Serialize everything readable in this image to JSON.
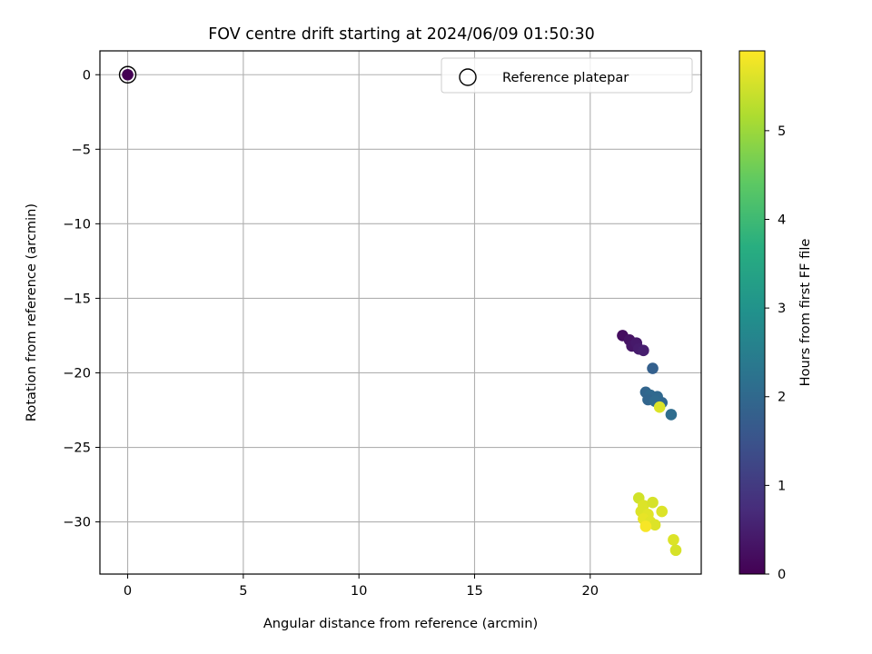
{
  "chart_data": {
    "type": "scatter",
    "title": "FOV centre drift starting at 2024/06/09 01:50:30",
    "xlabel": "Angular distance from reference (arcmin)",
    "ylabel": "Rotation from reference (arcmin)",
    "xlim": [
      -1.2,
      24.8
    ],
    "ylim": [
      -33.5,
      1.6
    ],
    "xticks": [
      0,
      5,
      10,
      15,
      20
    ],
    "yticks": [
      0,
      -5,
      -10,
      -15,
      -20,
      -25,
      -30
    ],
    "xtick_labels": [
      "0",
      "5",
      "10",
      "15",
      "20"
    ],
    "ytick_labels": [
      "0",
      "−5",
      "−10",
      "−15",
      "−20",
      "−25",
      "−30"
    ],
    "grid": true,
    "colormap": "viridis",
    "colorbar": {
      "label": "Hours from first FF file",
      "range": [
        0,
        5.9
      ],
      "ticks": [
        0,
        1,
        2,
        3,
        4,
        5
      ],
      "tick_labels": [
        "0",
        "1",
        "2",
        "3",
        "4",
        "5"
      ]
    },
    "legend": {
      "placement": "top-right",
      "entries": [
        {
          "label": "Reference platepar",
          "marker": "open-circle"
        }
      ]
    },
    "reference_point": {
      "x": 0,
      "y": 0,
      "hours": 0
    },
    "points": [
      {
        "x": 21.4,
        "y": -17.5,
        "hours": 0.2
      },
      {
        "x": 21.7,
        "y": -17.8,
        "hours": 0.3
      },
      {
        "x": 21.8,
        "y": -18.2,
        "hours": 0.35
      },
      {
        "x": 22.0,
        "y": -18.0,
        "hours": 0.4
      },
      {
        "x": 22.1,
        "y": -18.4,
        "hours": 0.45
      },
      {
        "x": 22.3,
        "y": -18.5,
        "hours": 0.5
      },
      {
        "x": 22.7,
        "y": -19.7,
        "hours": 1.8
      },
      {
        "x": 22.4,
        "y": -21.3,
        "hours": 1.9
      },
      {
        "x": 22.6,
        "y": -21.5,
        "hours": 2.0
      },
      {
        "x": 22.5,
        "y": -21.8,
        "hours": 1.9
      },
      {
        "x": 22.9,
        "y": -21.6,
        "hours": 2.0
      },
      {
        "x": 23.1,
        "y": -22.0,
        "hours": 1.95
      },
      {
        "x": 22.8,
        "y": -21.9,
        "hours": 2.05
      },
      {
        "x": 23.5,
        "y": -22.8,
        "hours": 2.1
      },
      {
        "x": 23.0,
        "y": -22.3,
        "hours": 5.6
      },
      {
        "x": 22.1,
        "y": -28.4,
        "hours": 5.5
      },
      {
        "x": 22.3,
        "y": -28.9,
        "hours": 5.6
      },
      {
        "x": 22.7,
        "y": -28.7,
        "hours": 5.55
      },
      {
        "x": 22.2,
        "y": -29.3,
        "hours": 5.6
      },
      {
        "x": 22.5,
        "y": -29.5,
        "hours": 5.65
      },
      {
        "x": 23.1,
        "y": -29.3,
        "hours": 5.6
      },
      {
        "x": 22.3,
        "y": -29.8,
        "hours": 5.7
      },
      {
        "x": 22.6,
        "y": -30.0,
        "hours": 5.65
      },
      {
        "x": 22.8,
        "y": -30.2,
        "hours": 5.6
      },
      {
        "x": 22.4,
        "y": -30.3,
        "hours": 5.85
      },
      {
        "x": 23.6,
        "y": -31.2,
        "hours": 5.6
      },
      {
        "x": 23.7,
        "y": -31.9,
        "hours": 5.55
      }
    ]
  }
}
